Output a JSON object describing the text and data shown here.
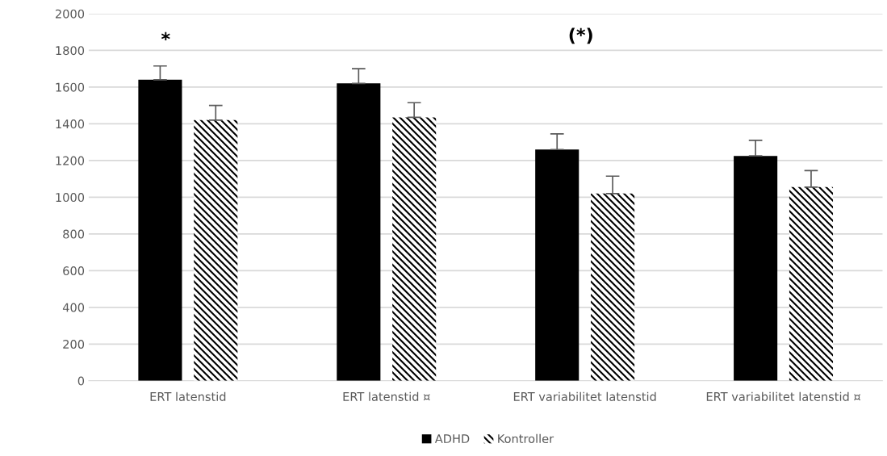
{
  "chart_data": {
    "type": "bar",
    "categories": [
      "ERT latenstid",
      "ERT latenstid ¤",
      "ERT variabilitet latenstid",
      "ERT variabilitet latenstid ¤"
    ],
    "series": [
      {
        "name": "ADHD",
        "color": "#000000",
        "values": [
          1640,
          1620,
          1260,
          1225
        ],
        "errors": [
          [
            1640,
            1715
          ],
          [
            1620,
            1700
          ],
          [
            1260,
            1345
          ],
          [
            1225,
            1310
          ]
        ]
      },
      {
        "name": "Kontroller",
        "color": "#000000",
        "values": [
          1420,
          1435,
          1020,
          1055
        ],
        "errors": [
          [
            1420,
            1500
          ],
          [
            1435,
            1515
          ],
          [
            1020,
            1115
          ],
          [
            1055,
            1145
          ]
        ]
      }
    ],
    "ylim": [
      0,
      2000
    ],
    "yticks": [
      0,
      200,
      400,
      600,
      800,
      1000,
      1200,
      1400,
      1600,
      1800,
      2000
    ],
    "grid": "y",
    "legend": "bottom",
    "annotations": [
      "*",
      "(*)"
    ]
  }
}
